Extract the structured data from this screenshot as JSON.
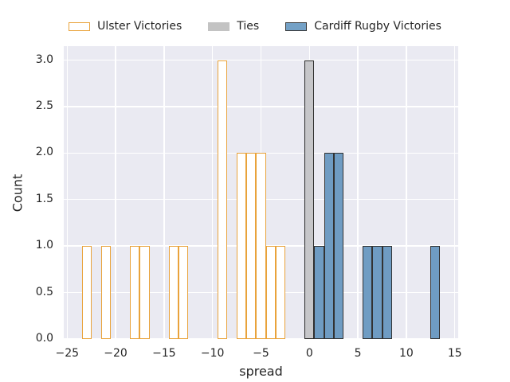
{
  "figure": {
    "background": "#ffffff",
    "text_color": "#262626"
  },
  "chart_data": {
    "type": "bar",
    "subtype": "histogram",
    "title": "",
    "xlabel": "spread",
    "ylabel": "Count",
    "xlim": [
      -25.35,
      15.35
    ],
    "ylim": [
      0,
      3.15
    ],
    "bin_width": 1,
    "grid": true,
    "plot_background": "#eaeaf2",
    "grid_color": "#ffffff",
    "legend_position": "top-center",
    "x_ticks": [
      {
        "value": -25,
        "label": "−25"
      },
      {
        "value": -20,
        "label": "−20"
      },
      {
        "value": -15,
        "label": "−15"
      },
      {
        "value": -10,
        "label": "−10"
      },
      {
        "value": -5,
        "label": "−5"
      },
      {
        "value": 0,
        "label": "0"
      },
      {
        "value": 5,
        "label": "5"
      },
      {
        "value": 10,
        "label": "10"
      },
      {
        "value": 15,
        "label": "15"
      }
    ],
    "y_ticks": [
      {
        "value": 0,
        "label": "0.0"
      },
      {
        "value": 0.5,
        "label": "0.5"
      },
      {
        "value": 1,
        "label": "1.0"
      },
      {
        "value": 1.5,
        "label": "1.5"
      },
      {
        "value": 2,
        "label": "2.0"
      },
      {
        "value": 2.5,
        "label": "2.5"
      },
      {
        "value": 3,
        "label": "3.0"
      }
    ],
    "series": [
      {
        "name": "Ulster Victories",
        "fill": "#ffffff",
        "edge": "#e9a33b",
        "legend_fill": "#ffffff",
        "legend_edge": "#e9a33b",
        "bars": [
          {
            "center": -23,
            "count": 1
          },
          {
            "center": -21,
            "count": 1
          },
          {
            "center": -18,
            "count": 1
          },
          {
            "center": -17,
            "count": 1
          },
          {
            "center": -14,
            "count": 1
          },
          {
            "center": -13,
            "count": 1
          },
          {
            "center": -9,
            "count": 3
          },
          {
            "center": -7,
            "count": 2
          },
          {
            "center": -6,
            "count": 2
          },
          {
            "center": -5,
            "count": 2
          },
          {
            "center": -4,
            "count": 1
          },
          {
            "center": -3,
            "count": 1
          }
        ]
      },
      {
        "name": "Ties",
        "fill": "#c6c6c9",
        "edge": "#2a2a2a",
        "legend_fill": "#c3c3c3",
        "legend_edge": "#c3c3c3",
        "bars": [
          {
            "center": 0,
            "count": 3
          }
        ]
      },
      {
        "name": "Cardiff Rugby Victories",
        "fill": "#6f9cc3",
        "edge": "#333333",
        "legend_fill": "#74a1c6",
        "legend_edge": "#3a3a3a",
        "bars": [
          {
            "center": 1,
            "count": 1
          },
          {
            "center": 2,
            "count": 2
          },
          {
            "center": 3,
            "count": 2
          },
          {
            "center": 6,
            "count": 1
          },
          {
            "center": 7,
            "count": 1
          },
          {
            "center": 8,
            "count": 1
          },
          {
            "center": 13,
            "count": 1
          }
        ]
      }
    ]
  }
}
